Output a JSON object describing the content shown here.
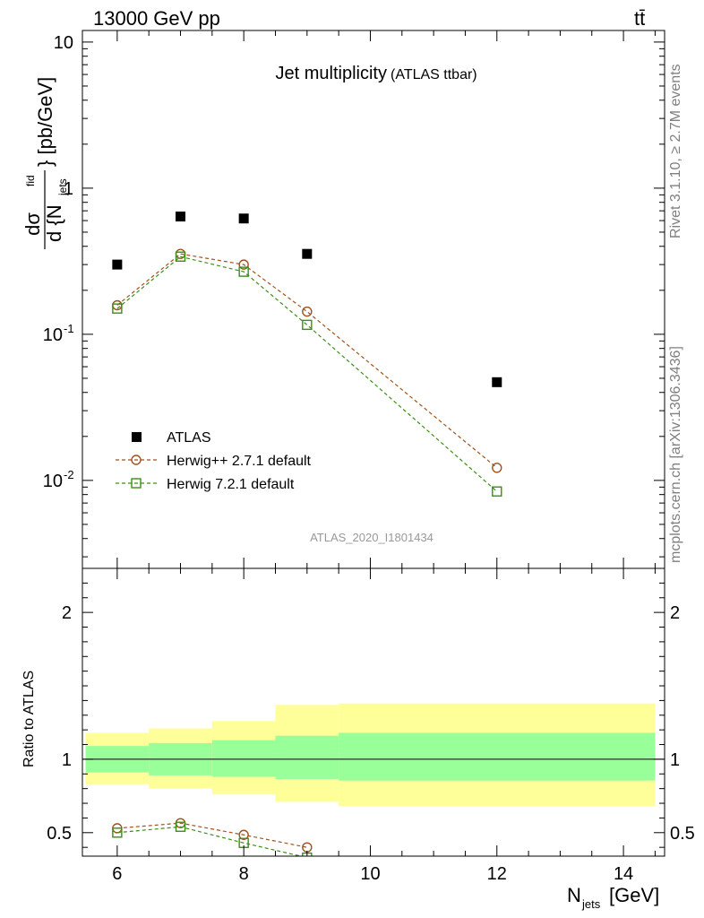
{
  "header": {
    "energy": "13000 GeV pp",
    "process": "tt̄"
  },
  "side_labels": {
    "rivet": "Rivet 3.1.10, ≥ 2.7M events",
    "source": "mcplots.cern.ch [arXiv:1306.3436]"
  },
  "analysis_tag": "ATLAS_2020_I1801434",
  "chart_data": [
    {
      "type": "scatter",
      "title": "Jet multiplicity",
      "subtitle": "(ATLAS ttbar)",
      "xlabel": "N_jets [GeV]",
      "ylabel": "dσ^fid / d{N_jets} [pb/GeV]",
      "yscale": "log",
      "xlim": [
        5.45,
        14.65
      ],
      "ylim": [
        0.0025,
        12
      ],
      "x_ticks": [
        "6",
        "8",
        "10",
        "12",
        "14"
      ],
      "y_ticks": [
        "10",
        "1",
        "10^-1",
        "10^-2"
      ],
      "legend_position": "bottom-left",
      "series": [
        {
          "name": "ATLAS",
          "color": "#000000",
          "marker": "filled-square",
          "x": [
            6,
            7,
            8,
            9,
            12
          ],
          "y": [
            0.3,
            0.64,
            0.62,
            0.355,
            0.047
          ]
        },
        {
          "name": "Herwig++ 2.7.1 default",
          "color": "#a0521d",
          "marker": "open-circle",
          "line": "dashed",
          "x": [
            6,
            7,
            8,
            9,
            12
          ],
          "y": [
            0.158,
            0.355,
            0.3,
            0.143,
            0.0122
          ]
        },
        {
          "name": "Herwig 7.2.1 default",
          "color": "#3a8f14",
          "marker": "open-square",
          "line": "dashed",
          "x": [
            6,
            7,
            8,
            9,
            12
          ],
          "y": [
            0.15,
            0.34,
            0.268,
            0.116,
            0.0084
          ]
        }
      ]
    },
    {
      "type": "scatter",
      "ylabel": "Ratio to ATLAS",
      "xlim": [
        5.45,
        14.65
      ],
      "ylim": [
        0.34,
        2.3
      ],
      "y_ticks": [
        "0.5",
        "1",
        "2"
      ],
      "bands": {
        "edges": [
          5.5,
          6.5,
          7.5,
          8.5,
          9.5,
          14.5
        ],
        "inner": {
          "color": "#99ff99",
          "low": [
            0.91,
            0.89,
            0.88,
            0.865,
            0.855
          ],
          "high": [
            1.09,
            1.11,
            1.13,
            1.16,
            1.18
          ]
        },
        "outer": {
          "color": "#ffff99",
          "low": [
            0.83,
            0.8,
            0.76,
            0.71,
            0.68
          ],
          "high": [
            1.18,
            1.21,
            1.26,
            1.37,
            1.38
          ]
        }
      },
      "series": [
        {
          "name": "Herwig++ 2.7.1 default",
          "color": "#a0521d",
          "marker": "open-circle",
          "line": "dashed",
          "x": [
            6,
            7,
            8,
            9
          ],
          "y": [
            0.53,
            0.565,
            0.485,
            0.4
          ]
        },
        {
          "name": "Herwig 7.2.1 default",
          "color": "#3a8f14",
          "marker": "open-square",
          "line": "dashed",
          "x": [
            6,
            7,
            8,
            9
          ],
          "y": [
            0.5,
            0.54,
            0.43,
            0.33
          ]
        }
      ]
    }
  ]
}
